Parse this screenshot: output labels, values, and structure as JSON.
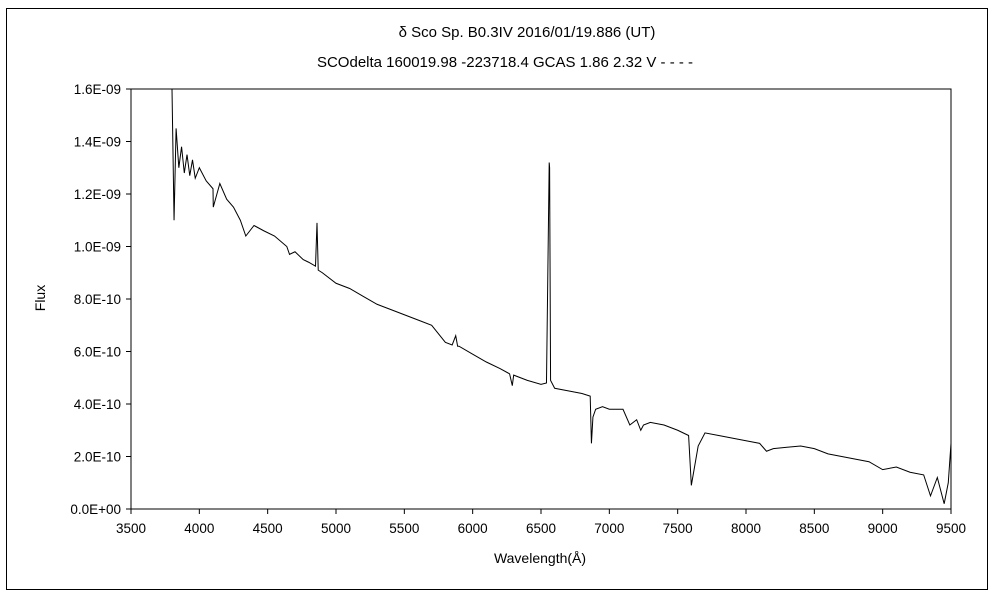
{
  "chart_data": {
    "type": "line",
    "title": "δ Sco    Sp. B0.3IV    2016/01/19.886 (UT)",
    "subtitle": "SCOdelta 160019.98 -223718.4 GCAS 1.86 2.32  V - - - -",
    "xlabel": "Wavelength(Å)",
    "ylabel": "Flux",
    "xlim": [
      3500,
      9500
    ],
    "ylim": [
      0,
      1.6e-09
    ],
    "x_ticks": [
      3500,
      4000,
      4500,
      5000,
      5500,
      6000,
      6500,
      7000,
      7500,
      8000,
      8500,
      9000,
      9500
    ],
    "x_tick_labels": [
      "3500",
      "4000",
      "4500",
      "5000",
      "5500",
      "6000",
      "6500",
      "7000",
      "7500",
      "8000",
      "8500",
      "9000",
      "9500"
    ],
    "y_ticks": [
      0,
      2e-10,
      4e-10,
      6e-10,
      8e-10,
      1e-09,
      1.2e-09,
      1.4e-09,
      1.6e-09
    ],
    "y_tick_labels": [
      "0.0E+00",
      "2.0E-10",
      "4.0E-10",
      "6.0E-10",
      "8.0E-10",
      "1.0E-09",
      "1.2E-09",
      "1.4E-09",
      "1.6E-09"
    ],
    "grid": false,
    "line_color": "#000000",
    "series": [
      {
        "x": [
          3800,
          3815,
          3830,
          3850,
          3870,
          3890,
          3910,
          3930,
          3950,
          3970,
          4000,
          4050,
          4100,
          4102,
          4150,
          4200,
          4250,
          4300,
          4340,
          4400,
          4471,
          4550,
          4640,
          4660,
          4700,
          4760,
          4800,
          4850,
          4861,
          4870,
          4900,
          5000,
          5100,
          5200,
          5300,
          5400,
          5500,
          5600,
          5700,
          5800,
          5850,
          5876,
          5890,
          5900,
          6000,
          6100,
          6200,
          6270,
          6290,
          6300,
          6400,
          6500,
          6540,
          6560,
          6563,
          6570,
          6600,
          6700,
          6800,
          6860,
          6869,
          6880,
          6900,
          6950,
          7000,
          7100,
          7150,
          7200,
          7230,
          7250,
          7300,
          7400,
          7500,
          7580,
          7600,
          7620,
          7650,
          7700,
          7800,
          7900,
          8000,
          8100,
          8150,
          8200,
          8300,
          8400,
          8500,
          8600,
          8700,
          8800,
          8900,
          9000,
          9100,
          9200,
          9300,
          9350,
          9400,
          9450,
          9480,
          9500
        ],
        "y": [
          1.6e-09,
          1.1e-09,
          1.45e-09,
          1.3e-09,
          1.38e-09,
          1.28e-09,
          1.35e-09,
          1.27e-09,
          1.33e-09,
          1.26e-09,
          1.3e-09,
          1.25e-09,
          1.22e-09,
          1.15e-09,
          1.24e-09,
          1.18e-09,
          1.15e-09,
          1.1e-09,
          1.04e-09,
          1.08e-09,
          1.06e-09,
          1.04e-09,
          1e-09,
          9.7e-10,
          9.8e-10,
          9.5e-10,
          9.4e-10,
          9.25e-10,
          1.09e-09,
          9.1e-10,
          9e-10,
          8.6e-10,
          8.4e-10,
          8.1e-10,
          7.8e-10,
          7.6e-10,
          7.4e-10,
          7.2e-10,
          7e-10,
          6.35e-10,
          6.25e-10,
          6.6e-10,
          6.2e-10,
          6.2e-10,
          5.9e-10,
          5.6e-10,
          5.35e-10,
          5.15e-10,
          4.7e-10,
          5.1e-10,
          4.9e-10,
          4.75e-10,
          4.8e-10,
          1.32e-09,
          1.3e-09,
          4.9e-10,
          4.6e-10,
          4.5e-10,
          4.4e-10,
          4.3e-10,
          2.5e-10,
          3.5e-10,
          3.8e-10,
          3.9e-10,
          3.8e-10,
          3.8e-10,
          3.2e-10,
          3.4e-10,
          3e-10,
          3.2e-10,
          3.3e-10,
          3.2e-10,
          3e-10,
          2.8e-10,
          9e-11,
          1.5e-10,
          2.4e-10,
          2.9e-10,
          2.8e-10,
          2.7e-10,
          2.6e-10,
          2.5e-10,
          2.2e-10,
          2.3e-10,
          2.35e-10,
          2.4e-10,
          2.3e-10,
          2.1e-10,
          2e-10,
          1.9e-10,
          1.8e-10,
          1.5e-10,
          1.6e-10,
          1.4e-10,
          1.3e-10,
          5e-11,
          1.2e-10,
          2e-11,
          1e-10,
          2.5e-10
        ]
      }
    ]
  }
}
